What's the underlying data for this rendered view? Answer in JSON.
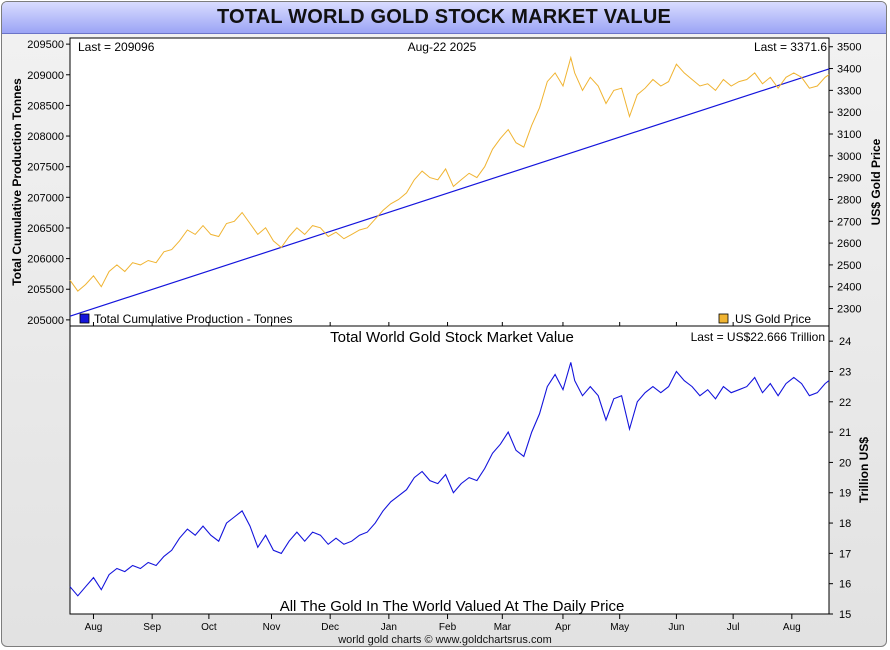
{
  "title": "TOTAL WORLD GOLD STOCK MARKET VALUE",
  "footer": "world gold charts © www.goldchartsrus.com",
  "colors": {
    "gold": "#f0b432",
    "blue": "#1414dc",
    "banner": "#aab0f6"
  },
  "chart_data": [
    {
      "type": "line",
      "panel": "top",
      "date_label": "Aug-22  2025",
      "last_left": "Last = 209096",
      "last_right": "Last = 3371.6",
      "ylabel_left": "Total Cumulative Production Tonnes",
      "ylabel_right": "US$ Gold Price",
      "ylim_left": [
        204900,
        209600
      ],
      "ylim_right": [
        2220,
        3540
      ],
      "yticks_left": [
        205000,
        205500,
        206000,
        206500,
        207000,
        207500,
        208000,
        208500,
        209000,
        209500
      ],
      "yticks_right": [
        2300,
        2400,
        2500,
        2600,
        2700,
        2800,
        2900,
        3000,
        3100,
        3200,
        3300,
        3400,
        3500
      ],
      "legend": {
        "left": "Total Cumulative Production - Tonnes",
        "right": "US Gold Price"
      },
      "series": [
        {
          "name": "Total Cumulative Production - Tonnes",
          "axis": "left",
          "x": [
            0,
            388
          ],
          "values": [
            205060,
            209096
          ]
        },
        {
          "name": "US Gold Price",
          "axis": "right",
          "x": [
            0,
            4,
            8,
            12,
            16,
            20,
            24,
            28,
            32,
            36,
            40,
            44,
            48,
            52,
            56,
            60,
            64,
            68,
            72,
            76,
            80,
            84,
            88,
            92,
            96,
            100,
            104,
            108,
            112,
            116,
            120,
            124,
            128,
            132,
            136,
            140,
            144,
            148,
            152,
            156,
            160,
            164,
            168,
            172,
            176,
            180,
            184,
            188,
            192,
            196,
            200,
            204,
            208,
            212,
            216,
            220,
            224,
            228,
            232,
            236,
            240,
            244,
            248,
            252,
            256,
            258,
            262,
            266,
            270,
            274,
            278,
            282,
            286,
            290,
            294,
            298,
            302,
            306,
            310,
            314,
            318,
            322,
            326,
            330,
            334,
            338,
            342,
            346,
            350,
            354,
            358,
            362,
            366,
            370,
            374,
            378,
            382,
            386,
            388
          ],
          "values": [
            2430,
            2380,
            2410,
            2450,
            2400,
            2470,
            2500,
            2470,
            2510,
            2500,
            2520,
            2510,
            2560,
            2570,
            2610,
            2660,
            2640,
            2680,
            2640,
            2630,
            2690,
            2700,
            2740,
            2690,
            2640,
            2670,
            2610,
            2580,
            2630,
            2670,
            2640,
            2680,
            2670,
            2630,
            2650,
            2620,
            2640,
            2660,
            2670,
            2710,
            2750,
            2780,
            2800,
            2830,
            2890,
            2930,
            2900,
            2890,
            2940,
            2860,
            2890,
            2920,
            2900,
            2950,
            3030,
            3080,
            3120,
            3060,
            3040,
            3140,
            3220,
            3340,
            3380,
            3320,
            3450,
            3380,
            3300,
            3360,
            3320,
            3240,
            3300,
            3310,
            3180,
            3280,
            3310,
            3350,
            3320,
            3340,
            3420,
            3380,
            3350,
            3320,
            3330,
            3300,
            3350,
            3320,
            3340,
            3350,
            3380,
            3330,
            3360,
            3310,
            3360,
            3380,
            3360,
            3310,
            3320,
            3360,
            3371.6
          ]
        }
      ]
    },
    {
      "type": "line",
      "panel": "bottom",
      "title": "Total World Gold Stock Market Value",
      "subtitle": "All The Gold In The World Valued At The Daily Price",
      "last_label": "Last = US$22.666 Trillion",
      "ylabel_right": "Trillion US$",
      "ylim": [
        15,
        24.5
      ],
      "yticks": [
        15,
        16,
        17,
        18,
        19,
        20,
        21,
        22,
        23,
        24
      ],
      "series": [
        {
          "name": "Total World Gold Stock Market Value",
          "x": [
            0,
            4,
            8,
            12,
            16,
            20,
            24,
            28,
            32,
            36,
            40,
            44,
            48,
            52,
            56,
            60,
            64,
            68,
            72,
            76,
            80,
            84,
            88,
            92,
            96,
            100,
            104,
            108,
            112,
            116,
            120,
            124,
            128,
            132,
            136,
            140,
            144,
            148,
            152,
            156,
            160,
            164,
            168,
            172,
            176,
            180,
            184,
            188,
            192,
            196,
            200,
            204,
            208,
            212,
            216,
            220,
            224,
            228,
            232,
            236,
            240,
            244,
            248,
            252,
            256,
            258,
            262,
            266,
            270,
            274,
            278,
            282,
            286,
            290,
            294,
            298,
            302,
            306,
            310,
            314,
            318,
            322,
            326,
            330,
            334,
            338,
            342,
            346,
            350,
            354,
            358,
            362,
            366,
            370,
            374,
            378,
            382,
            386,
            388
          ],
          "values": [
            15.9,
            15.6,
            15.9,
            16.2,
            15.8,
            16.3,
            16.5,
            16.4,
            16.6,
            16.5,
            16.7,
            16.6,
            16.9,
            17.1,
            17.5,
            17.8,
            17.6,
            17.9,
            17.6,
            17.4,
            18.0,
            18.2,
            18.4,
            17.9,
            17.2,
            17.6,
            17.1,
            17.0,
            17.4,
            17.7,
            17.4,
            17.7,
            17.6,
            17.3,
            17.5,
            17.3,
            17.4,
            17.6,
            17.7,
            18.0,
            18.4,
            18.7,
            18.9,
            19.1,
            19.5,
            19.7,
            19.4,
            19.3,
            19.6,
            19.0,
            19.3,
            19.5,
            19.4,
            19.8,
            20.3,
            20.6,
            21.0,
            20.4,
            20.2,
            21.0,
            21.6,
            22.5,
            22.9,
            22.4,
            23.3,
            22.7,
            22.2,
            22.5,
            22.2,
            21.4,
            22.1,
            22.2,
            21.1,
            22.0,
            22.3,
            22.5,
            22.3,
            22.5,
            23.0,
            22.7,
            22.5,
            22.2,
            22.4,
            22.1,
            22.5,
            22.3,
            22.4,
            22.5,
            22.8,
            22.3,
            22.6,
            22.2,
            22.6,
            22.8,
            22.6,
            22.2,
            22.3,
            22.6,
            22.7
          ]
        }
      ]
    }
  ],
  "x_axis": {
    "months": [
      "Aug",
      "Sep",
      "Oct",
      "Nov",
      "Dec",
      "Jan",
      "Feb",
      "Mar",
      "Apr",
      "May",
      "Jun",
      "Jul",
      "Aug"
    ],
    "month_x": [
      12,
      42,
      71,
      103,
      133,
      163,
      193,
      221,
      252,
      281,
      310,
      339,
      369
    ],
    "x_range": [
      0,
      388
    ]
  }
}
